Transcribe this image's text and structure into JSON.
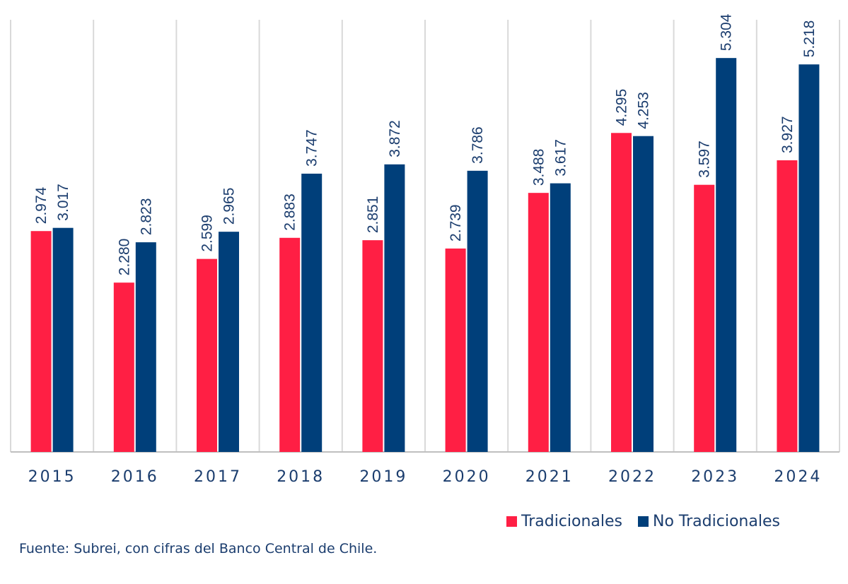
{
  "chart_data": {
    "type": "bar",
    "title": "",
    "xlabel": "",
    "ylabel": "",
    "categories": [
      "2015",
      "2016",
      "2017",
      "2018",
      "2019",
      "2020",
      "2021",
      "2022",
      "2023",
      "2024"
    ],
    "series": [
      {
        "name": "Tradicionales",
        "color": "#ff1f44",
        "values": [
          2974,
          2280,
          2599,
          2883,
          2851,
          2739,
          3488,
          4295,
          3597,
          3927
        ],
        "labels": [
          "2.974",
          "2.280",
          "2.599",
          "2.883",
          "2.851",
          "2.739",
          "3.488",
          "4.295",
          "3.597",
          "3.927"
        ]
      },
      {
        "name": "No Tradicionales",
        "color": "#003f7a",
        "values": [
          3017,
          2823,
          2965,
          3747,
          3872,
          3786,
          3617,
          4253,
          5304,
          5218
        ],
        "labels": [
          "3.017",
          "2.823",
          "2.965",
          "3.747",
          "3.872",
          "3.786",
          "3.617",
          "4.253",
          "5.304",
          "5.218"
        ]
      }
    ],
    "ylim": [
      0,
      5800
    ],
    "grid": false,
    "legend_position": "bottom-right"
  },
  "legend": {
    "items": [
      {
        "label": "Tradicionales",
        "color": "#ff1f44"
      },
      {
        "label": "No Tradicionales",
        "color": "#003f7a"
      }
    ]
  },
  "source_note": "Fuente: Subrei, con cifras del Banco Central de Chile.",
  "colors": {
    "axis_text": "#1b3d6e",
    "label_text": "#1b3d6e",
    "separator": "#d9d9d9"
  }
}
